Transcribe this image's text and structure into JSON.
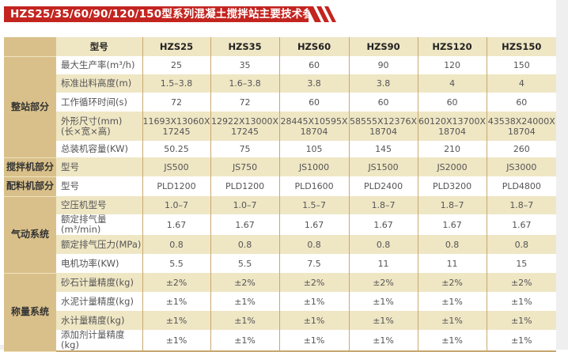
{
  "title": "HZS25/35/60/90/120/150型系列混凝土搅拌站主要技术参数",
  "colors": {
    "banner": "#c3241f",
    "section_bg": "#d9c08a",
    "stripe_bg": "#efe6c4",
    "grid": "#c8a870"
  },
  "header": {
    "label": "型号",
    "models": [
      "HZS25",
      "HZS35",
      "HZS60",
      "HZS90",
      "HZS120",
      "HZS150"
    ]
  },
  "sections": [
    {
      "name": "整站部分",
      "rows": [
        {
          "label": "最大生产率(m³/h)",
          "values": [
            "25",
            "35",
            "60",
            "90",
            "120",
            "150"
          ]
        },
        {
          "label": "标准出料高度(m)",
          "values": [
            "1.5–3.8",
            "1.6–3.8",
            "3.8",
            "3.8",
            "4",
            "4"
          ]
        },
        {
          "label": "工作循环时间(s)",
          "values": [
            "72",
            "72",
            "60",
            "60",
            "60",
            "60"
          ]
        },
        {
          "label": "外形尺寸(mm)\n(长×宽×高)",
          "values": [
            "11693X13060X\n17245",
            "12922X13000X\n17245",
            "28445X10595X\n18704",
            "58555X12376X\n18704",
            "60120X13700X\n18704",
            "43538X24000X\n18704"
          ]
        },
        {
          "label": "总装机容量(KW)",
          "values": [
            "50.25",
            "75",
            "105",
            "145",
            "210",
            "260"
          ]
        }
      ]
    },
    {
      "name": "搅拌机部分",
      "rows": [
        {
          "label": "型号",
          "values": [
            "JS500",
            "JS750",
            "JS1000",
            "JS1500",
            "JS2000",
            "JS3000"
          ]
        }
      ]
    },
    {
      "name": "配料机部分",
      "rows": [
        {
          "label": "型号",
          "values": [
            "PLD1200",
            "PLD1200",
            "PLD1600",
            "PLD2400",
            "PLD3200",
            "PLD4800"
          ]
        }
      ]
    },
    {
      "name": "气动系统",
      "rows": [
        {
          "label": "空压机型号",
          "values": [
            "1.0–7",
            "1.0–7",
            "1.5–7",
            "1.8–7",
            "1.8–7",
            "1.8–7"
          ]
        },
        {
          "label": "额定排气量(m³/min)",
          "values": [
            "1.67",
            "1.67",
            "1.67",
            "1.67",
            "1.67",
            "1.67"
          ]
        },
        {
          "label": "额定排气压力(MPa)",
          "values": [
            "0.8",
            "0.8",
            "0.8",
            "0.8",
            "0.8",
            "0.8"
          ]
        },
        {
          "label": "电机功率(KW)",
          "values": [
            "5.5",
            "5.5",
            "7.5",
            "11",
            "11",
            "15"
          ]
        }
      ]
    },
    {
      "name": "称量系统",
      "rows": [
        {
          "label": "砂石计量精度(kg)",
          "values": [
            "±2%",
            "±2%",
            "±2%",
            "±2%",
            "±2%",
            "±2%"
          ]
        },
        {
          "label": "水泥计量精度(kg)",
          "values": [
            "±1%",
            "±1%",
            "±1%",
            "±1%",
            "±1%",
            "±1%"
          ]
        },
        {
          "label": "水计量精度(kg)",
          "values": [
            "±1%",
            "±1%",
            "±1%",
            "±1%",
            "±1%",
            "±1%"
          ]
        },
        {
          "label": "添加剂计量精度(kg)",
          "values": [
            "±1%",
            "±1%",
            "±1%",
            "±1%",
            "±1%",
            "±1%"
          ]
        }
      ]
    }
  ]
}
